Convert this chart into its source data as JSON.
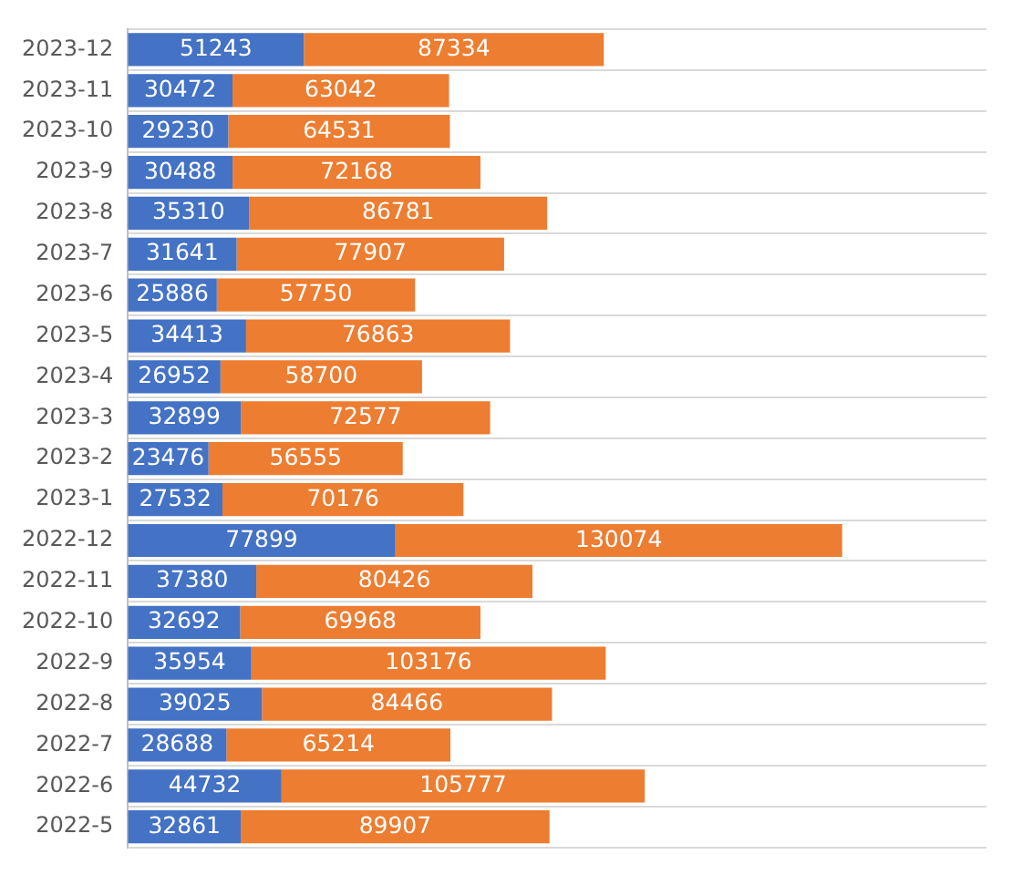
{
  "chart_data": {
    "type": "bar",
    "orientation": "horizontal",
    "stacked": true,
    "data_labels": true,
    "grid": "y",
    "legend": false,
    "categories": [
      "2023-12",
      "2023-11",
      "2023-10",
      "2023-9",
      "2023-8",
      "2023-7",
      "2023-6",
      "2023-5",
      "2023-4",
      "2023-3",
      "2023-2",
      "2023-1",
      "2022-12",
      "2022-11",
      "2022-10",
      "2022-9",
      "2022-8",
      "2022-7",
      "2022-6",
      "2022-5"
    ],
    "tick_labels": "y",
    "series": [
      {
        "color": "#4472c4",
        "values": [
          51243,
          30472,
          29230,
          30488,
          35310,
          31641,
          25886,
          34413,
          26952,
          32899,
          23476,
          27532,
          77899,
          37380,
          32692,
          35954,
          39025,
          28688,
          44732,
          32861
        ]
      },
      {
        "color": "#ed7d31",
        "values": [
          87334,
          63042,
          64531,
          72168,
          86781,
          77907,
          57750,
          76863,
          58700,
          72577,
          56555,
          70176,
          130074,
          80426,
          69968,
          103176,
          84466,
          65214,
          105777,
          89907
        ]
      }
    ]
  }
}
